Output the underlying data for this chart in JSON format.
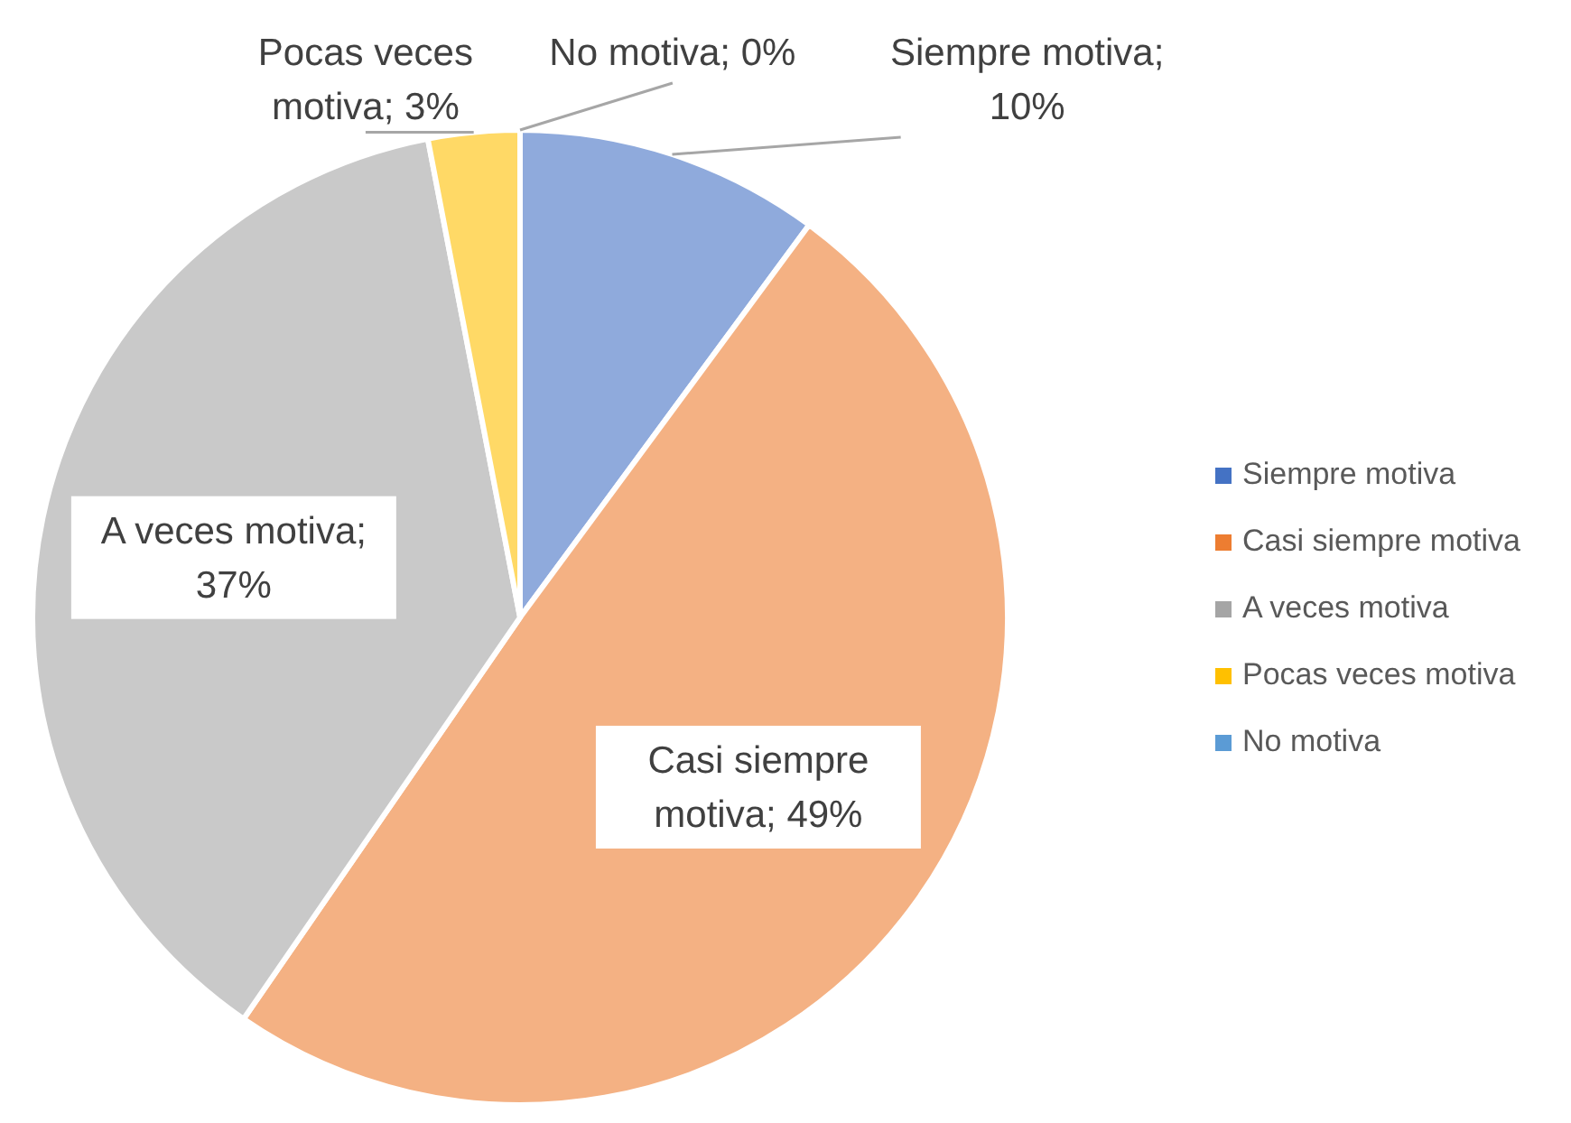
{
  "chart_data": {
    "type": "pie",
    "categories": [
      "Siempre motiva",
      "Casi siempre motiva",
      "A veces motiva",
      "Pocas veces motiva",
      "No motiva"
    ],
    "values": [
      10,
      49,
      37,
      3,
      0
    ],
    "colors": [
      "#4472c4",
      "#ed7d31",
      "#a5a5a5",
      "#ffc000",
      "#5b9bd5"
    ],
    "value_labels": [
      "Siempre motiva; 10%",
      "Casi siempre motiva; 49%",
      "A veces motiva; 37%",
      "Pocas veces motiva; 3%",
      "No motiva; 0%"
    ],
    "legend": "right"
  }
}
